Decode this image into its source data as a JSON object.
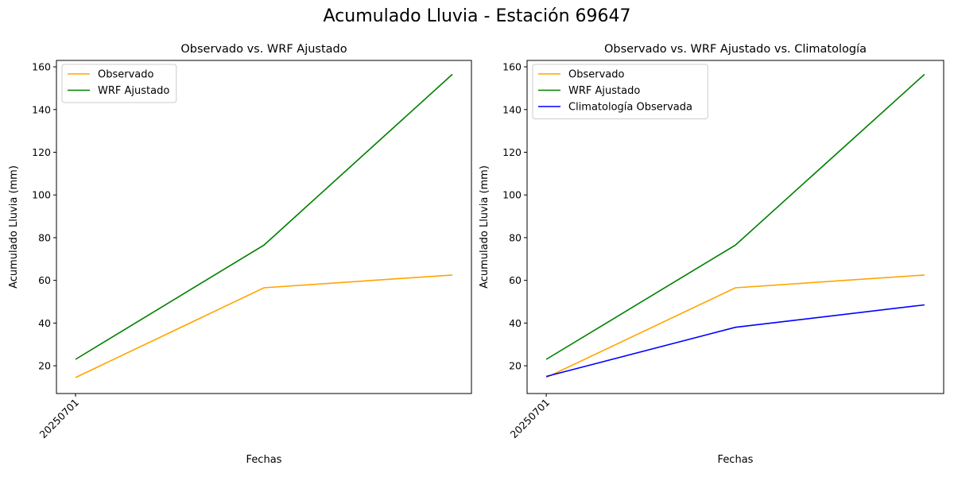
{
  "figure": {
    "title": "Acumulado Lluvia - Estación 69647"
  },
  "chart_data": [
    {
      "type": "line",
      "title": "Observado vs. WRF Ajustado",
      "xlabel": "Fechas",
      "ylabel": "Acumulado Lluvia (mm)",
      "x": [
        0,
        1,
        2
      ],
      "xticks": [
        {
          "x": 0,
          "label": "20250701"
        }
      ],
      "ylim": [
        7,
        163
      ],
      "yticks": [
        20,
        40,
        60,
        80,
        100,
        120,
        140,
        160
      ],
      "grid": false,
      "legend_position": "top-left",
      "series": [
        {
          "name": "Observado",
          "color": "#ffa500",
          "values": [
            14.5,
            56.5,
            62.5
          ]
        },
        {
          "name": "WRF Ajustado",
          "color": "#008000",
          "values": [
            23,
            76.5,
            156.5
          ]
        }
      ]
    },
    {
      "type": "line",
      "title": "Observado vs. WRF Ajustado vs. Climatología",
      "xlabel": "Fechas",
      "ylabel": "Acumulado Lluvia (mm)",
      "x": [
        0,
        1,
        2
      ],
      "xticks": [
        {
          "x": 0,
          "label": "20250701"
        }
      ],
      "ylim": [
        7,
        163
      ],
      "yticks": [
        20,
        40,
        60,
        80,
        100,
        120,
        140,
        160
      ],
      "grid": false,
      "legend_position": "top-left",
      "series": [
        {
          "name": "Observado",
          "color": "#ffa500",
          "values": [
            14.5,
            56.5,
            62.5
          ]
        },
        {
          "name": "WRF Ajustado",
          "color": "#008000",
          "values": [
            23,
            76.5,
            156.5
          ]
        },
        {
          "name": "Climatología Observada",
          "color": "#0000ff",
          "values": [
            15,
            38,
            48.5
          ]
        }
      ]
    }
  ]
}
